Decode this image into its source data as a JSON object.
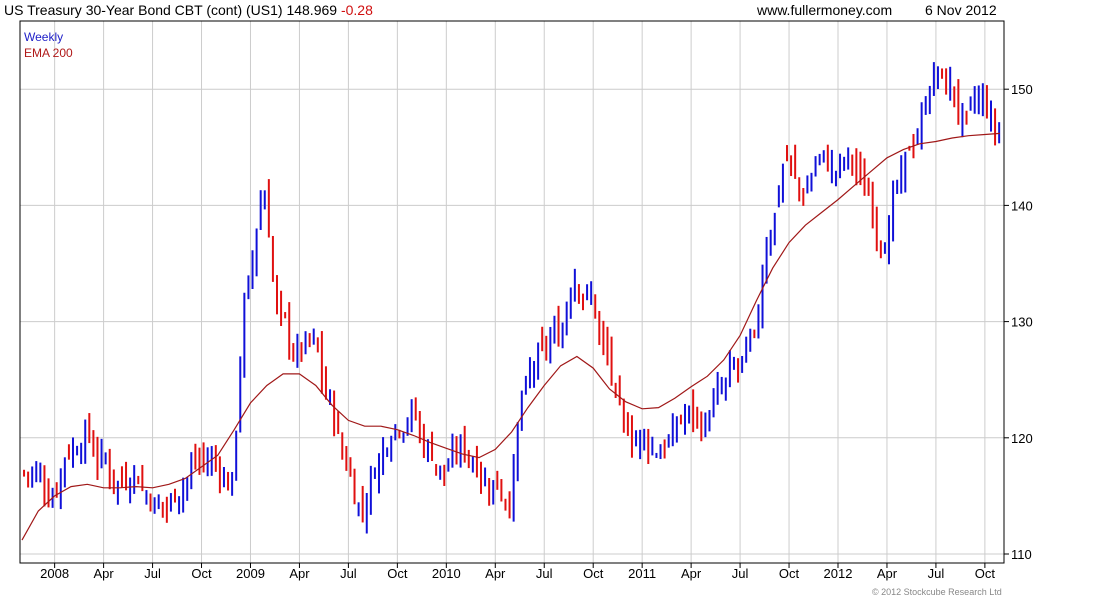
{
  "header": {
    "instrument": "US Treasury 30-Year  Bond CBT (cont) (US1)",
    "last_price": "148.969",
    "change": "-0.28",
    "source": "www.fullermoney.com",
    "date": "6 Nov 2012"
  },
  "legend": {
    "weekly": "Weekly",
    "ema": "EMA 200"
  },
  "copyright": "© 2012 Stockcube Research Ltd",
  "colors": {
    "up_bar": "#1010d8",
    "down_bar": "#e01010",
    "ema_line": "#a01818",
    "grid": "#cccccc",
    "axis": "#000000"
  },
  "chart_data": {
    "type": "line",
    "subtype": "weekly-ohlc",
    "ylim": [
      110,
      155
    ],
    "y_ticks": [
      110,
      120,
      130,
      140,
      150
    ],
    "x_tick_labels": [
      "2008",
      "Apr",
      "Jul",
      "Oct",
      "2009",
      "Apr",
      "Jul",
      "Oct",
      "2010",
      "Apr",
      "Jul",
      "Oct",
      "2011",
      "Apr",
      "Jul",
      "Oct",
      "2012",
      "Apr",
      "Jul",
      "Oct"
    ],
    "x_range": [
      "2007-11",
      "2012-11"
    ],
    "grid": true,
    "series": [
      {
        "name": "Weekly",
        "x": [
          "2007-11",
          "2007-12",
          "2008-01",
          "2008-02",
          "2008-03",
          "2008-04",
          "2008-05",
          "2008-06",
          "2008-07",
          "2008-08",
          "2008-09",
          "2008-10",
          "2008-11",
          "2008-12",
          "2009-01",
          "2009-02",
          "2009-03",
          "2009-04",
          "2009-05",
          "2009-06",
          "2009-07",
          "2009-08",
          "2009-09",
          "2009-10",
          "2009-11",
          "2009-12",
          "2010-01",
          "2010-02",
          "2010-03",
          "2010-04",
          "2010-05",
          "2010-06",
          "2010-07",
          "2010-08",
          "2010-09",
          "2010-10",
          "2010-11",
          "2010-12",
          "2011-01",
          "2011-02",
          "2011-03",
          "2011-04",
          "2011-05",
          "2011-06",
          "2011-07",
          "2011-08",
          "2011-09",
          "2011-10",
          "2011-11",
          "2011-12",
          "2012-01",
          "2012-02",
          "2012-03",
          "2012-04",
          "2012-05",
          "2012-06",
          "2012-07",
          "2012-08",
          "2012-09",
          "2012-10",
          "2012-11"
        ],
        "values": [
          117,
          115,
          119,
          120,
          118,
          116,
          117,
          115,
          114,
          116,
          118,
          118,
          116,
          133,
          141,
          130,
          127,
          128,
          123,
          118,
          114,
          118,
          121,
          122,
          119,
          117,
          119,
          118,
          116,
          115,
          124,
          127,
          129,
          134,
          132,
          127,
          121,
          120,
          119,
          120,
          122,
          121,
          124,
          126,
          128,
          138,
          144,
          141,
          144,
          143,
          144,
          141,
          137,
          142,
          146,
          151,
          150,
          147,
          149,
          146,
          149
        ]
      },
      {
        "name": "EMA 200",
        "x": [
          "2007-11",
          "2007-12",
          "2008-01",
          "2008-02",
          "2008-03",
          "2008-04",
          "2008-05",
          "2008-06",
          "2008-07",
          "2008-08",
          "2008-09",
          "2008-10",
          "2008-11",
          "2008-12",
          "2009-01",
          "2009-02",
          "2009-03",
          "2009-04",
          "2009-05",
          "2009-06",
          "2009-07",
          "2009-08",
          "2009-09",
          "2009-10",
          "2009-11",
          "2009-12",
          "2010-01",
          "2010-02",
          "2010-03",
          "2010-04",
          "2010-05",
          "2010-06",
          "2010-07",
          "2010-08",
          "2010-09",
          "2010-10",
          "2010-11",
          "2010-12",
          "2011-01",
          "2011-02",
          "2011-03",
          "2011-04",
          "2011-05",
          "2011-06",
          "2011-07",
          "2011-08",
          "2011-09",
          "2011-10",
          "2011-11",
          "2011-12",
          "2012-01",
          "2012-02",
          "2012-03",
          "2012-04",
          "2012-05",
          "2012-06",
          "2012-07",
          "2012-08",
          "2012-09",
          "2012-10",
          "2012-11"
        ],
        "values": [
          111.2,
          113.7,
          115.0,
          115.8,
          116.0,
          115.7,
          115.7,
          115.8,
          115.7,
          116.0,
          116.5,
          117.5,
          118.5,
          120.7,
          123.0,
          124.5,
          125.5,
          125.5,
          124.5,
          122.8,
          121.5,
          121.0,
          121.0,
          120.7,
          120.2,
          119.6,
          119.1,
          118.6,
          118.3,
          119.0,
          120.5,
          122.6,
          124.5,
          126.2,
          127.0,
          126.0,
          124.2,
          123.1,
          122.5,
          122.6,
          123.4,
          124.4,
          125.3,
          126.7,
          128.8,
          131.8,
          134.6,
          136.8,
          138.3,
          139.4,
          140.5,
          141.7,
          142.9,
          144.1,
          144.8,
          145.3,
          145.5,
          145.8,
          146.0,
          146.1,
          146.2
        ]
      }
    ]
  }
}
